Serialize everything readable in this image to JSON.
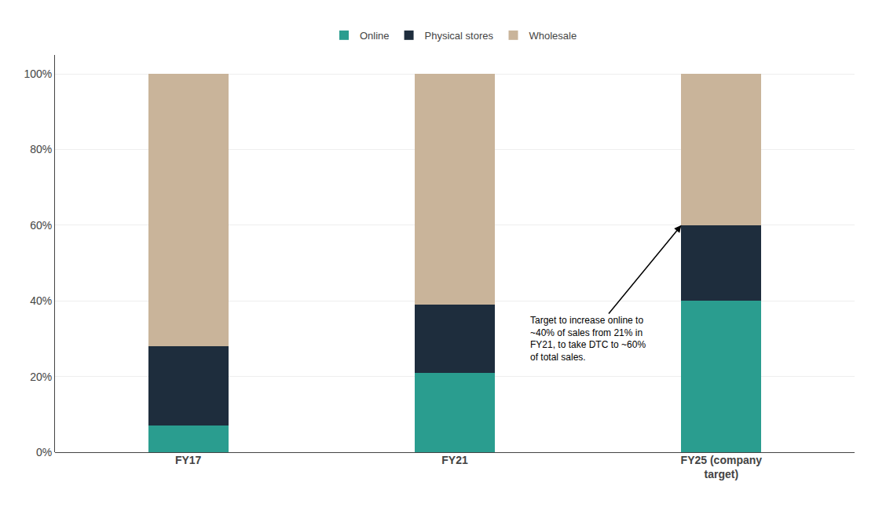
{
  "chart_data": {
    "type": "bar",
    "stacked": true,
    "categories": [
      "FY17",
      "FY21",
      "FY25 (company\ntarget)"
    ],
    "series": [
      {
        "name": "Online",
        "color": "#2a9d8f",
        "values": [
          0.07,
          0.21,
          0.4
        ]
      },
      {
        "name": "Physical stores",
        "color": "#1e2d3d",
        "values": [
          0.21,
          0.18,
          0.2
        ]
      },
      {
        "name": "Wholesale",
        "color": "#c9b49a",
        "values": [
          0.72,
          0.61,
          0.4
        ]
      }
    ],
    "ylim": [
      0,
      1.05
    ],
    "yticks": [
      {
        "value": 0,
        "label": "0%"
      },
      {
        "value": 0.2,
        "label": "20%"
      },
      {
        "value": 0.4,
        "label": "40%"
      },
      {
        "value": 0.6,
        "label": "60%"
      },
      {
        "value": 0.8,
        "label": "80%"
      },
      {
        "value": 1.0,
        "label": "100%"
      }
    ],
    "grid": true,
    "legend": "top",
    "annotations": [
      "Target to increase online to\n~40% of sales from 21% in\nFY21, to take DTC to ~60%\nof total sales."
    ]
  }
}
